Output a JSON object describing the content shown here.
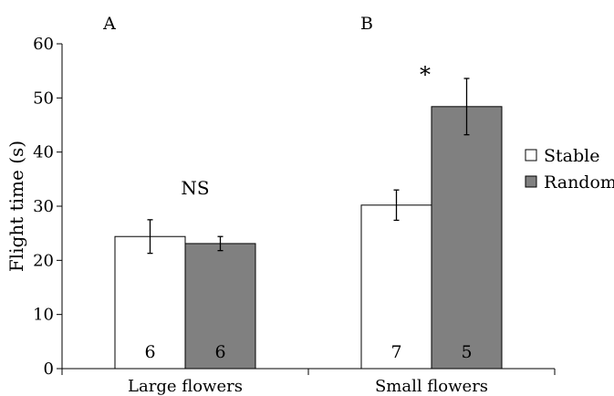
{
  "chart_data": {
    "type": "bar",
    "ylabel": "Flight time (s)",
    "ylim": [
      0,
      60
    ],
    "yticks": [
      0,
      10,
      20,
      30,
      40,
      50,
      60
    ],
    "categories": [
      "Large flowers",
      "Small flowers"
    ],
    "panel_labels": [
      "A",
      "B"
    ],
    "significance": [
      "NS",
      "*"
    ],
    "series": [
      {
        "name": "Stable",
        "values": [
          24.4,
          30.2
        ],
        "errors": [
          3.1,
          2.8
        ],
        "n": [
          "6",
          "7"
        ],
        "color": "#ffffff"
      },
      {
        "name": "Random",
        "values": [
          23.1,
          48.4
        ],
        "errors": [
          1.3,
          5.2
        ],
        "n": [
          "6",
          "5"
        ],
        "color": "#808080"
      }
    ],
    "legend_position": "right"
  }
}
